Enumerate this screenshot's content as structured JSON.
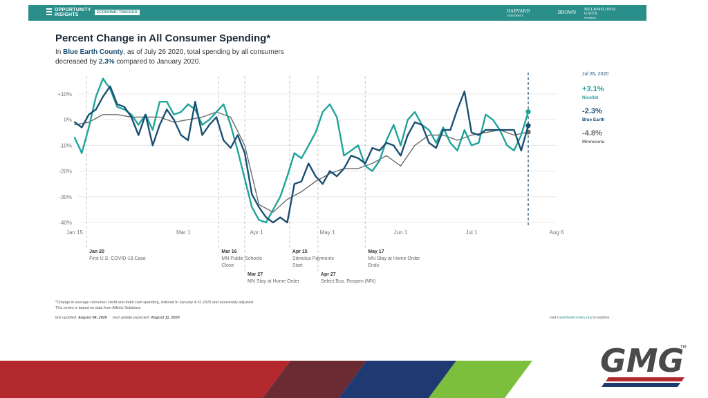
{
  "header": {
    "logo_line1": "OPPORTUNITY",
    "logo_line2": "INSIGHTS",
    "tracker_label": "ECONOMIC TRACKER",
    "partner1_line1": "HARVARD",
    "partner1_line2": "UNIVERSITY",
    "partner2": "BROWN",
    "partner3_line1": "BILL&MELINDA",
    "partner3_line2": "GATES",
    "partner3_line3": "foundation"
  },
  "title": "Percent Change in All Consumer Spending*",
  "subtitle": {
    "p1": "In ",
    "county": "Blue Earth County",
    "p2": ", as of July 26 2020, total spending by all consumers decreased by ",
    "value": "2.3%",
    "p3": " compared to January 2020."
  },
  "side_panel": {
    "date": "Jul 26, 2020",
    "items": [
      {
        "value": "+3.1%",
        "name": "Nicollet",
        "color": "#1fa39a"
      },
      {
        "value": "-2.3%",
        "name": "Blue Earth",
        "color": "#1a4f72"
      },
      {
        "value": "-4.8%",
        "name": "Minnesota",
        "color": "#6b6b6b"
      }
    ]
  },
  "chart_data": {
    "type": "line",
    "title": "Percent Change in All Consumer Spending*",
    "xlabel": "",
    "ylabel": "",
    "x_ticks": [
      {
        "label": "Jan 15",
        "day": 0
      },
      {
        "label": "Mar 1",
        "day": 46
      },
      {
        "label": "Apr 1",
        "day": 77
      },
      {
        "label": "May 1",
        "day": 107
      },
      {
        "label": "Jun 1",
        "day": 138
      },
      {
        "label": "Jul 1",
        "day": 168
      },
      {
        "label": "Aug 6",
        "day": 204
      }
    ],
    "y_ticks": [
      {
        "label": "+10%",
        "value": 10
      },
      {
        "label": "0%",
        "value": 0
      },
      {
        "label": "-10%",
        "value": -10
      },
      {
        "label": "-20%",
        "value": -20
      },
      {
        "label": "-30%",
        "value": -30
      },
      {
        "label": "-40%",
        "value": -40
      }
    ],
    "ylim": [
      -40,
      17
    ],
    "xlim_days": [
      0,
      204
    ],
    "x_dates": [
      "2020-01-15",
      "2020-08-06"
    ],
    "series": [
      {
        "name": "Nicollet",
        "color": "#1fa39a",
        "width": 2.4,
        "days": [
          0,
          3,
          6,
          9,
          12,
          15,
          18,
          21,
          24,
          27,
          30,
          33,
          36,
          39,
          42,
          45,
          48,
          51,
          54,
          57,
          60,
          63,
          66,
          69,
          72,
          75,
          78,
          81,
          84,
          87,
          90,
          93,
          96,
          99,
          102,
          105,
          108,
          111,
          114,
          117,
          120,
          123,
          126,
          129,
          132,
          135,
          138,
          141,
          144,
          147,
          150,
          153,
          156,
          159,
          162,
          165,
          168,
          171,
          174,
          177,
          180,
          183,
          186,
          189,
          192
        ],
        "values": [
          -7,
          -13,
          -3,
          9,
          16,
          12,
          5,
          4,
          2,
          -2,
          2,
          -4,
          7,
          7,
          2,
          3,
          6,
          4,
          -2,
          0,
          3,
          6,
          -2,
          -12,
          -23,
          -34,
          -39,
          -40,
          -35,
          -30,
          -22,
          -13,
          -15,
          -10,
          -5,
          3,
          6,
          1,
          -14,
          -12,
          -10,
          -18,
          -20,
          -16,
          -8,
          -2,
          -10,
          0,
          3,
          -2,
          -4,
          -9,
          -3,
          -9,
          -12,
          -4,
          -10,
          -9,
          2,
          0,
          -4,
          -10,
          -12,
          -6,
          3.1
        ]
      },
      {
        "name": "Blue Earth",
        "color": "#1a4f72",
        "width": 2.4,
        "days": [
          0,
          3,
          6,
          9,
          12,
          15,
          18,
          21,
          24,
          27,
          30,
          33,
          36,
          39,
          42,
          45,
          48,
          51,
          54,
          57,
          60,
          63,
          66,
          69,
          72,
          75,
          78,
          81,
          84,
          87,
          90,
          93,
          96,
          99,
          102,
          105,
          108,
          111,
          114,
          117,
          120,
          123,
          126,
          129,
          132,
          135,
          138,
          141,
          144,
          147,
          150,
          153,
          156,
          159,
          162,
          165,
          168,
          171,
          174,
          177,
          180,
          183,
          186,
          189,
          192
        ],
        "values": [
          -1,
          -3,
          2,
          4,
          9,
          13,
          6,
          5,
          1,
          -6,
          2,
          -10,
          -2,
          4,
          0,
          -6,
          -8,
          7,
          -6,
          -2,
          1,
          -8,
          -11,
          -6,
          -13,
          -29,
          -34,
          -38,
          -40,
          -38,
          -40,
          -25,
          -24,
          -17,
          -22,
          -25,
          -20,
          -22,
          -19,
          -14,
          -15,
          -17,
          -11,
          -12,
          -9,
          -10,
          -14,
          -6,
          -1,
          -2,
          -9,
          -11,
          -4,
          -4,
          4,
          11,
          -5,
          -6,
          -4,
          -4,
          -4,
          -4,
          -4,
          -12,
          -2.3
        ]
      },
      {
        "name": "Minnesota",
        "color": "#6b6b6b",
        "width": 1.4,
        "days": [
          0,
          6,
          12,
          18,
          24,
          30,
          36,
          42,
          48,
          54,
          60,
          66,
          72,
          78,
          84,
          90,
          96,
          102,
          108,
          114,
          120,
          126,
          132,
          138,
          144,
          150,
          156,
          162,
          168,
          174,
          180,
          186,
          192
        ],
        "values": [
          -2,
          -1,
          2,
          2,
          1,
          1,
          1,
          -1,
          0,
          1,
          3,
          1,
          -10,
          -33,
          -36,
          -31,
          -28,
          -24,
          -21,
          -19,
          -19,
          -17,
          -14,
          -18,
          -10,
          -6,
          -6,
          -8,
          -6,
          -5,
          -4,
          -6,
          -4.8
        ]
      }
    ]
  },
  "events": [
    {
      "date": "Jan 20",
      "desc_lines": [
        "First U.S. COVID-19 Case"
      ],
      "day": 5,
      "row": 1
    },
    {
      "date": "Mar 16",
      "desc_lines": [
        "MN Public Schools",
        "Close"
      ],
      "day": 61,
      "row": 1
    },
    {
      "date": "Mar 27",
      "desc_lines": [
        "MN Stay at Home Order"
      ],
      "day": 72,
      "row": 2
    },
    {
      "date": "Apr 15",
      "desc_lines": [
        "Stimulus Payments",
        "Start"
      ],
      "day": 91,
      "row": 1
    },
    {
      "date": "Apr 27",
      "desc_lines": [
        "Select Bus. Reopen (MN)"
      ],
      "day": 103,
      "row": 2
    },
    {
      "date": "May 17",
      "desc_lines": [
        "MN Stay at Home Order",
        "Ends"
      ],
      "day": 123,
      "row": 1
    }
  ],
  "footnote_line1": "*Change in average consumer credit and debit card spending, indexed to January 4-31 2020 and seasonally adjusted.",
  "footnote_line2": "This series is based on data from Affinity Solutions.",
  "last_updated_label": "last updated: ",
  "last_updated_value": "August 04, 2020",
  "next_update_label": "next update expected: ",
  "next_update_value": "August 11, 2020",
  "visit_prefix": "visit ",
  "visit_link": "tracktherecovery.org",
  "visit_suffix": " to explore",
  "brand_logo_text": "GMG",
  "brand_tm": "TM",
  "stripe_colors": [
    "#b3282d",
    "#6a2b32",
    "#1f3a72",
    "#7bbf3c"
  ]
}
